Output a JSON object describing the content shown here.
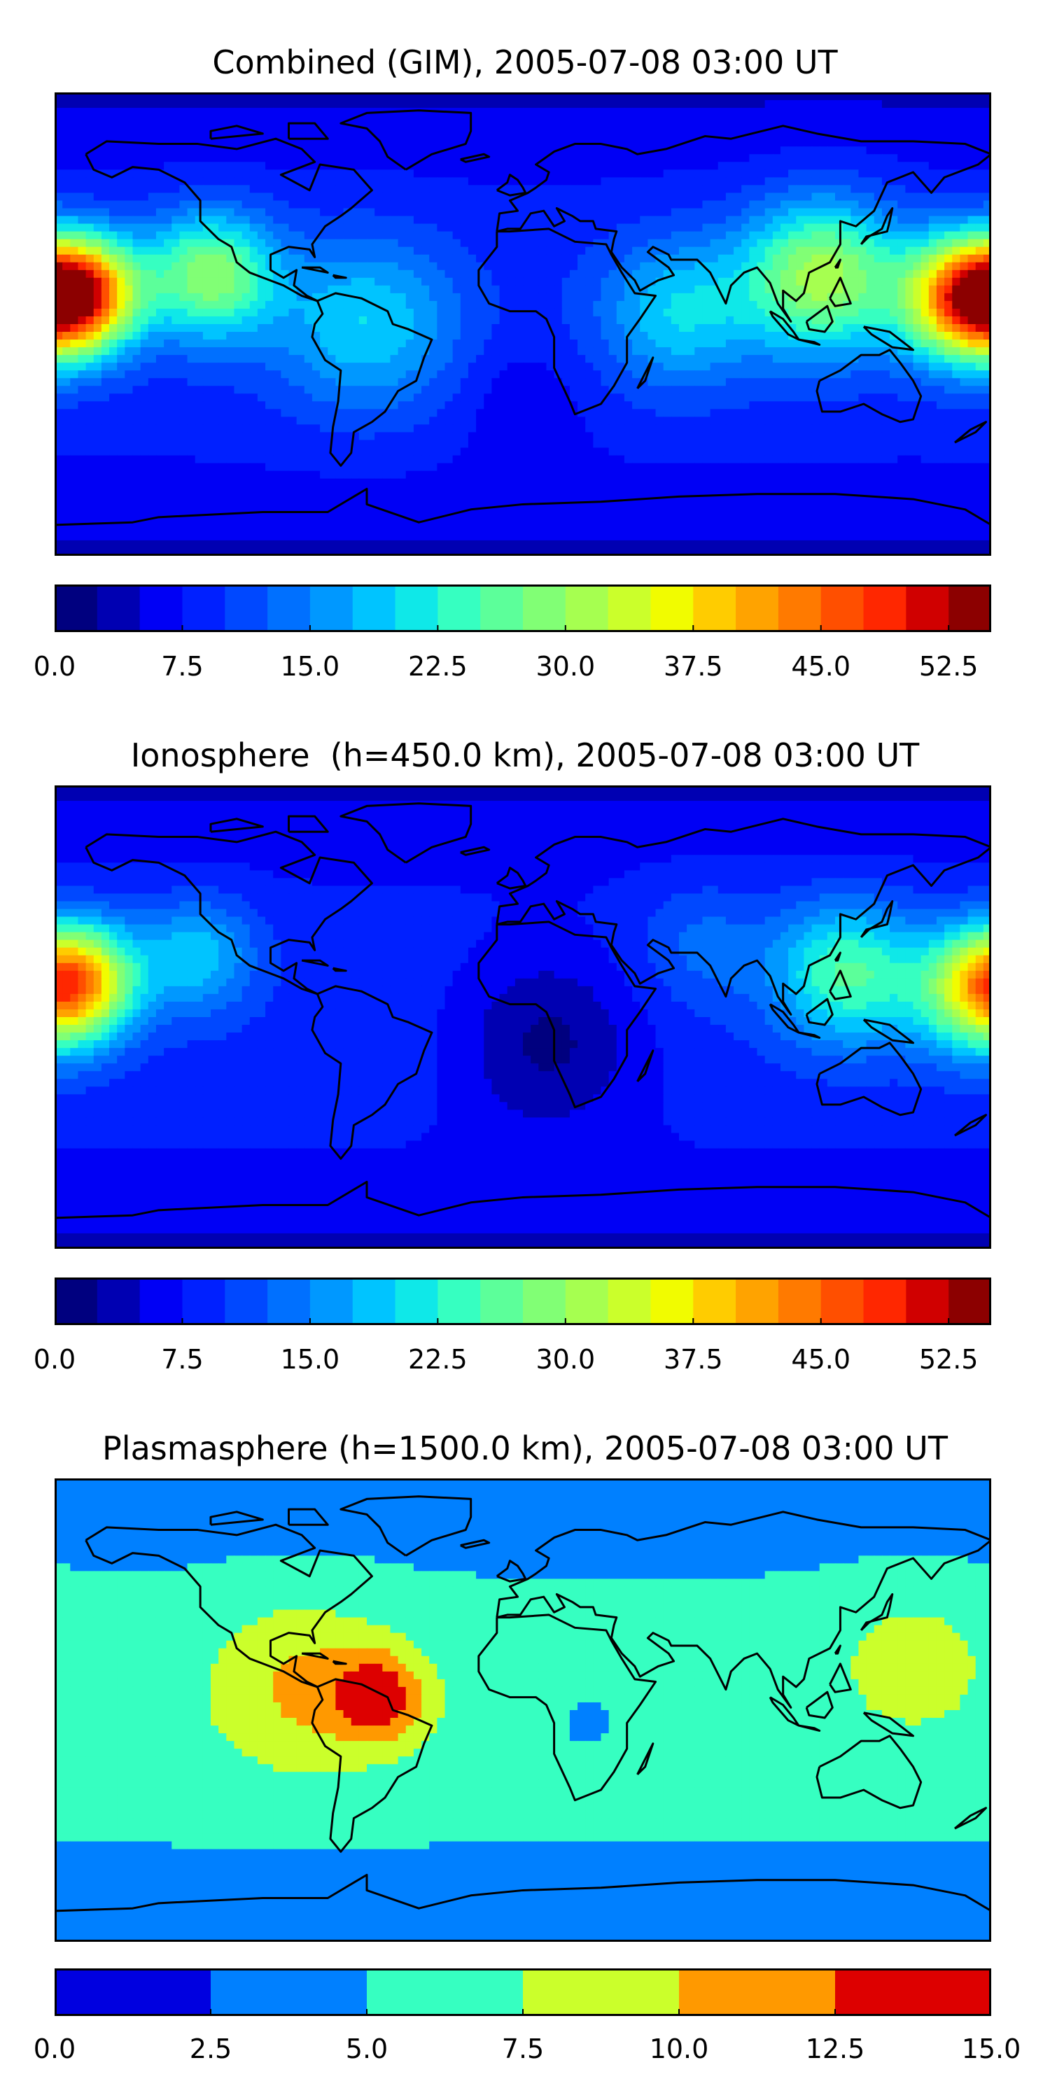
{
  "chart_data": [
    {
      "type": "heatmap",
      "title": "Combined (GIM), 2005-07-08 03:00 UT",
      "colorbar": {
        "ticks": [
          "0.0",
          "7.5",
          "15.0",
          "22.5",
          "30.0",
          "37.5",
          "45.0",
          "52.5"
        ],
        "tick_values": [
          0,
          7.5,
          15,
          22.5,
          30,
          37.5,
          45,
          52.5
        ],
        "range": [
          0,
          55
        ],
        "levels": [
          0,
          2.5,
          5,
          7.5,
          10,
          12.5,
          15,
          17.5,
          20,
          22.5,
          25,
          27.5,
          30,
          32.5,
          35,
          37.5,
          40,
          42.5,
          45,
          47.5,
          50,
          52.5,
          55
        ],
        "colors": [
          "#00007f",
          "#0000b2",
          "#0000f5",
          "#0020ff",
          "#0048ff",
          "#0070ff",
          "#0098ff",
          "#00c4ff",
          "#0fe8e8",
          "#36ffc1",
          "#5cff9a",
          "#81ff75",
          "#a6ff50",
          "#cbff2b",
          "#f1fc00",
          "#ffcc00",
          "#ffa300",
          "#ff7a00",
          "#ff4f00",
          "#ff2700",
          "#d00000",
          "#8c0000"
        ]
      },
      "map": {
        "projection": "plate carree",
        "lon_range": [
          -180,
          180
        ],
        "lat_range": [
          -90,
          90
        ],
        "overlay": "coastlines",
        "features": [
          {
            "lon": -170,
            "lat": 12,
            "value": 45,
            "spread": 22
          },
          {
            "lon": 170,
            "lat": 10,
            "value": 43,
            "spread": 24
          },
          {
            "lon": -120,
            "lat": 20,
            "value": 30,
            "spread": 25
          },
          {
            "lon": 115,
            "lat": 20,
            "value": 32,
            "spread": 30
          },
          {
            "lon": 60,
            "lat": 5,
            "value": 20,
            "spread": 30
          },
          {
            "lon": -60,
            "lat": 0,
            "value": 20,
            "spread": 35
          },
          {
            "lon": 0,
            "lat": -30,
            "value": 6,
            "spread": 25
          }
        ],
        "background": 9
      }
    },
    {
      "type": "heatmap",
      "title": "Ionosphere  (h=450.0 km), 2005-07-08 03:00 UT",
      "colorbar": {
        "ticks": [
          "0.0",
          "7.5",
          "15.0",
          "22.5",
          "30.0",
          "37.5",
          "45.0",
          "52.5"
        ],
        "tick_values": [
          0,
          7.5,
          15,
          22.5,
          30,
          37.5,
          45,
          52.5
        ],
        "range": [
          0,
          55
        ],
        "levels": [
          0,
          2.5,
          5,
          7.5,
          10,
          12.5,
          15,
          17.5,
          20,
          22.5,
          25,
          27.5,
          30,
          32.5,
          35,
          37.5,
          40,
          42.5,
          45,
          47.5,
          50,
          52.5,
          55
        ],
        "colors": [
          "#00007f",
          "#0000b2",
          "#0000f5",
          "#0020ff",
          "#0048ff",
          "#0070ff",
          "#0098ff",
          "#00c4ff",
          "#0fe8e8",
          "#36ffc1",
          "#5cff9a",
          "#81ff75",
          "#a6ff50",
          "#cbff2b",
          "#f1fc00",
          "#ffcc00",
          "#ffa300",
          "#ff7a00",
          "#ff4f00",
          "#ff2700",
          "#d00000",
          "#8c0000"
        ]
      },
      "map": {
        "projection": "plate carree",
        "lon_range": [
          -180,
          180
        ],
        "lat_range": [
          -90,
          90
        ],
        "overlay": "coastlines",
        "features": [
          {
            "lon": -170,
            "lat": 15,
            "value": 34,
            "spread": 22
          },
          {
            "lon": 175,
            "lat": 10,
            "value": 30,
            "spread": 24
          },
          {
            "lon": 125,
            "lat": 18,
            "value": 26,
            "spread": 28
          },
          {
            "lon": -125,
            "lat": 25,
            "value": 20,
            "spread": 22
          },
          {
            "lon": 10,
            "lat": -10,
            "value": 2,
            "spread": 35
          },
          {
            "lon": 70,
            "lat": 30,
            "value": 14,
            "spread": 25
          }
        ],
        "background": 9
      }
    },
    {
      "type": "heatmap",
      "title": "Plasmasphere (h=1500.0 km), 2005-07-08 03:00 UT",
      "colorbar": {
        "ticks": [
          "0.0",
          "2.5",
          "5.0",
          "7.5",
          "10.0",
          "12.5",
          "15.0"
        ],
        "tick_values": [
          0,
          2.5,
          5,
          7.5,
          10,
          12.5,
          15
        ],
        "range": [
          0,
          15
        ],
        "levels": [
          0,
          2.5,
          5,
          7.5,
          10,
          12.5,
          15
        ],
        "colors": [
          "#0000e0",
          "#0080ff",
          "#36ffc1",
          "#cbff2b",
          "#ff9900",
          "#dd0000"
        ]
      },
      "map": {
        "projection": "plate carree",
        "lon_range": [
          -180,
          180
        ],
        "lat_range": [
          -90,
          90
        ],
        "overlay": "coastlines",
        "features": [
          {
            "lon": -55,
            "lat": 5,
            "value": 13,
            "spread": 18
          },
          {
            "lon": -85,
            "lat": 10,
            "value": 10.5,
            "spread": 35
          },
          {
            "lon": 150,
            "lat": 20,
            "value": 9,
            "spread": 30
          },
          {
            "lon": 25,
            "lat": -5,
            "value": 3.5,
            "spread": 8
          }
        ],
        "background": 6
      }
    }
  ]
}
